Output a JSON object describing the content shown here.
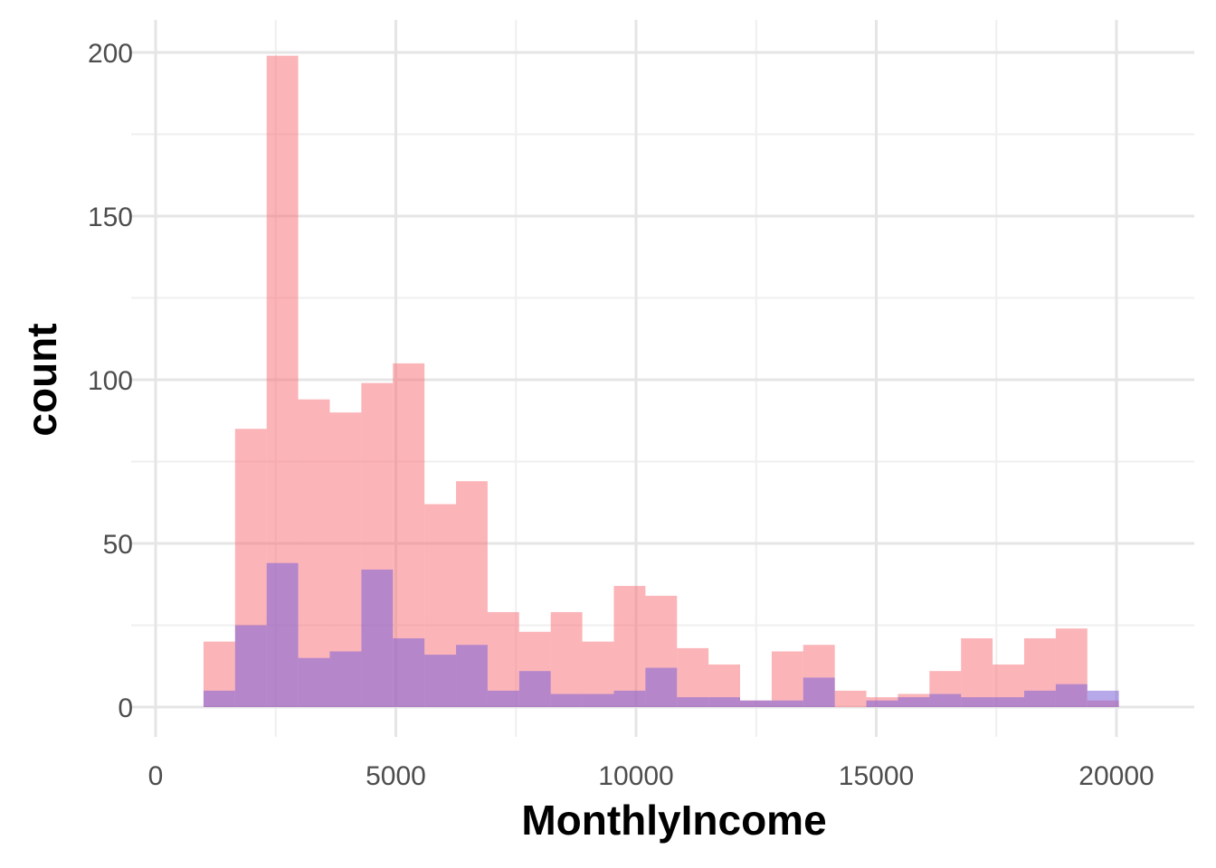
{
  "chart_data": {
    "type": "bar",
    "title": "",
    "xlabel": "MonthlyIncome",
    "ylabel": "count",
    "xlim": [
      0,
      21500
    ],
    "ylim": [
      0,
      210
    ],
    "x_ticks": [
      0,
      5000,
      10000,
      15000,
      20000
    ],
    "x_tick_labels": [
      "0",
      "5000",
      "10000",
      "15000",
      "20000"
    ],
    "x_minor_ticks": [
      2500,
      7500,
      12500,
      17500
    ],
    "y_ticks": [
      0,
      50,
      100,
      150,
      200
    ],
    "y_tick_labels": [
      "0",
      "50",
      "100",
      "150",
      "200"
    ],
    "y_minor_ticks": [
      25,
      75,
      125,
      175
    ],
    "grid": true,
    "legend": "none",
    "bin_start": 997,
    "bin_width": 657,
    "series": [
      {
        "color": "#F8767D",
        "opacity": 0.55,
        "values": [
          20,
          85,
          199,
          94,
          90,
          99,
          105,
          62,
          69,
          29,
          23,
          29,
          20,
          37,
          34,
          18,
          13,
          2,
          17,
          19,
          5,
          3,
          4,
          11,
          21,
          13,
          21,
          24,
          2
        ]
      },
      {
        "color": "#7B61D8",
        "opacity": 0.55,
        "values": [
          5,
          25,
          44,
          15,
          17,
          42,
          21,
          16,
          19,
          5,
          11,
          4,
          4,
          5,
          12,
          3,
          3,
          2,
          2,
          9,
          0,
          2,
          3,
          4,
          3,
          3,
          5,
          7,
          5,
          0
        ]
      }
    ]
  }
}
